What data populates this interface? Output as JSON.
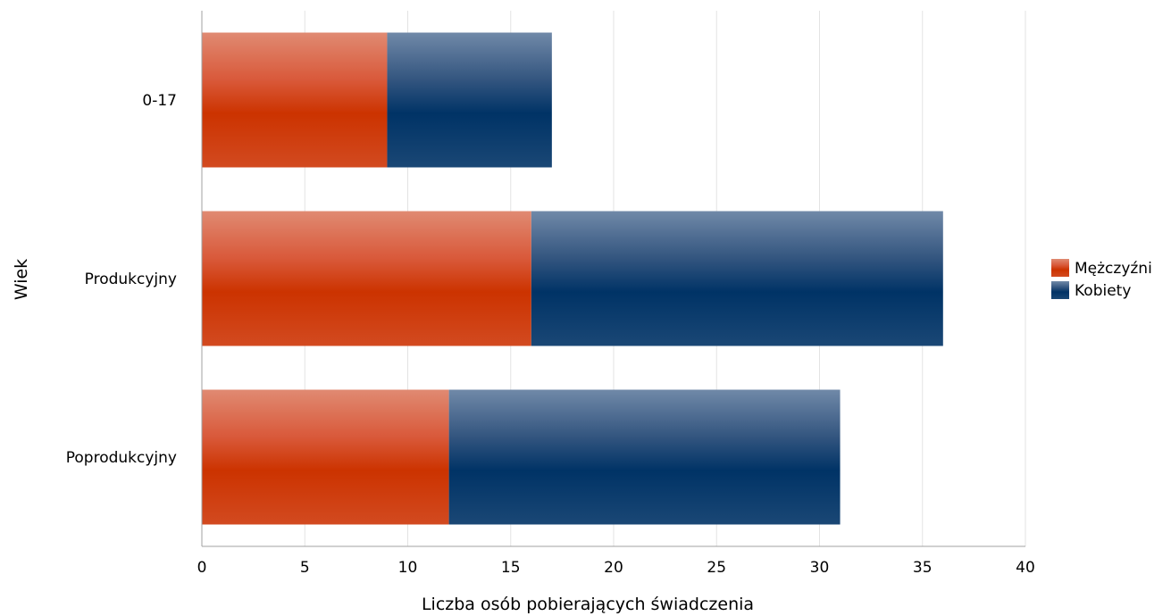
{
  "chart_data": {
    "type": "bar",
    "orientation": "horizontal",
    "stacked": true,
    "categories": [
      "0-17",
      "Produkcyjny",
      "Poprodukcyjny"
    ],
    "series": [
      {
        "name": "Mężczyźni",
        "values": [
          9,
          16,
          12
        ],
        "color": "#cc3300"
      },
      {
        "name": "Kobiety",
        "values": [
          8,
          20,
          19
        ],
        "color": "#003366"
      }
    ],
    "xlabel": "Liczba osób pobierających świadczenia",
    "ylabel": "Wiek",
    "xlim": [
      0,
      40
    ],
    "xticks": [
      0,
      5,
      10,
      15,
      20,
      25,
      30,
      35,
      40
    ],
    "grid": true,
    "legend_position": "right"
  }
}
